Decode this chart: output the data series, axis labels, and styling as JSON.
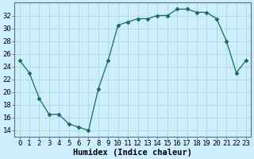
{
  "x": [
    0,
    1,
    2,
    3,
    4,
    5,
    6,
    7,
    8,
    9,
    10,
    11,
    12,
    13,
    14,
    15,
    16,
    17,
    18,
    19,
    20,
    21,
    22,
    23
  ],
  "y": [
    25,
    23,
    19,
    16.5,
    16.5,
    15,
    14.5,
    14,
    20.5,
    25,
    30.5,
    31,
    31.5,
    31.5,
    32,
    32,
    33,
    33,
    32.5,
    32.5,
    31.5,
    28,
    23,
    25
  ],
  "line_color": "#1a6b5a",
  "marker": "D",
  "marker_size": 2.5,
  "bg_color": "#cceeff",
  "grid_color": "#aaddcc",
  "xlabel": "Humidex (Indice chaleur)",
  "xlim": [
    -0.5,
    23.5
  ],
  "ylim": [
    13,
    34
  ],
  "yticks": [
    14,
    16,
    18,
    20,
    22,
    24,
    26,
    28,
    30,
    32
  ],
  "xticks": [
    0,
    1,
    2,
    3,
    4,
    5,
    6,
    7,
    8,
    9,
    10,
    11,
    12,
    13,
    14,
    15,
    16,
    17,
    18,
    19,
    20,
    21,
    22,
    23
  ],
  "xlabel_fontsize": 7.5,
  "tick_fontsize": 6.5
}
